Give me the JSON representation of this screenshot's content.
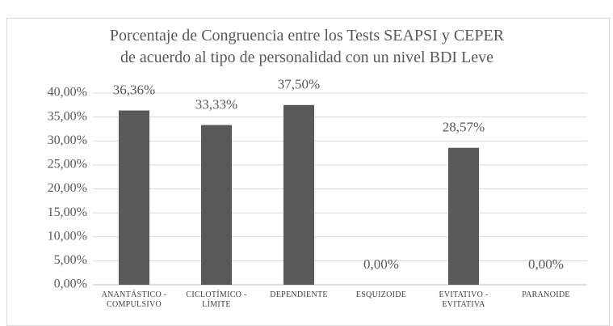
{
  "chart_data": {
    "type": "bar",
    "title": "Porcentaje de Congruencia entre los Tests SEAPSI y CEPER\nde acuerdo al tipo de personalidad con un nivel BDI Leve",
    "categories": [
      "ANANTÁSTICO -\nCOMPULSIVO",
      "CICLOTÍMICO -\nLÍMITE",
      "DEPENDIENTE",
      "ESQUIZOIDE",
      "EVITATIVO -\nEVITATIVA",
      "PARANOIDE"
    ],
    "values": [
      36.36,
      33.33,
      37.5,
      0,
      28.57,
      0
    ],
    "value_labels": [
      "36,36%",
      "33,33%",
      "37,50%",
      "0,00%",
      "28,57%",
      "0,00%"
    ],
    "color": "#595959",
    "ylim": [
      0,
      40
    ],
    "yticks": [
      {
        "value": 0,
        "label": "0,00%"
      },
      {
        "value": 5,
        "label": "5,00%"
      },
      {
        "value": 10,
        "label": "10,00%"
      },
      {
        "value": 15,
        "label": "15,00%"
      },
      {
        "value": 20,
        "label": "20,00%"
      },
      {
        "value": 25,
        "label": "25,00%"
      },
      {
        "value": 30,
        "label": "30,00%"
      },
      {
        "value": 35,
        "label": "35,00%"
      },
      {
        "value": 40,
        "label": "40,00%"
      }
    ],
    "grid": true
  }
}
